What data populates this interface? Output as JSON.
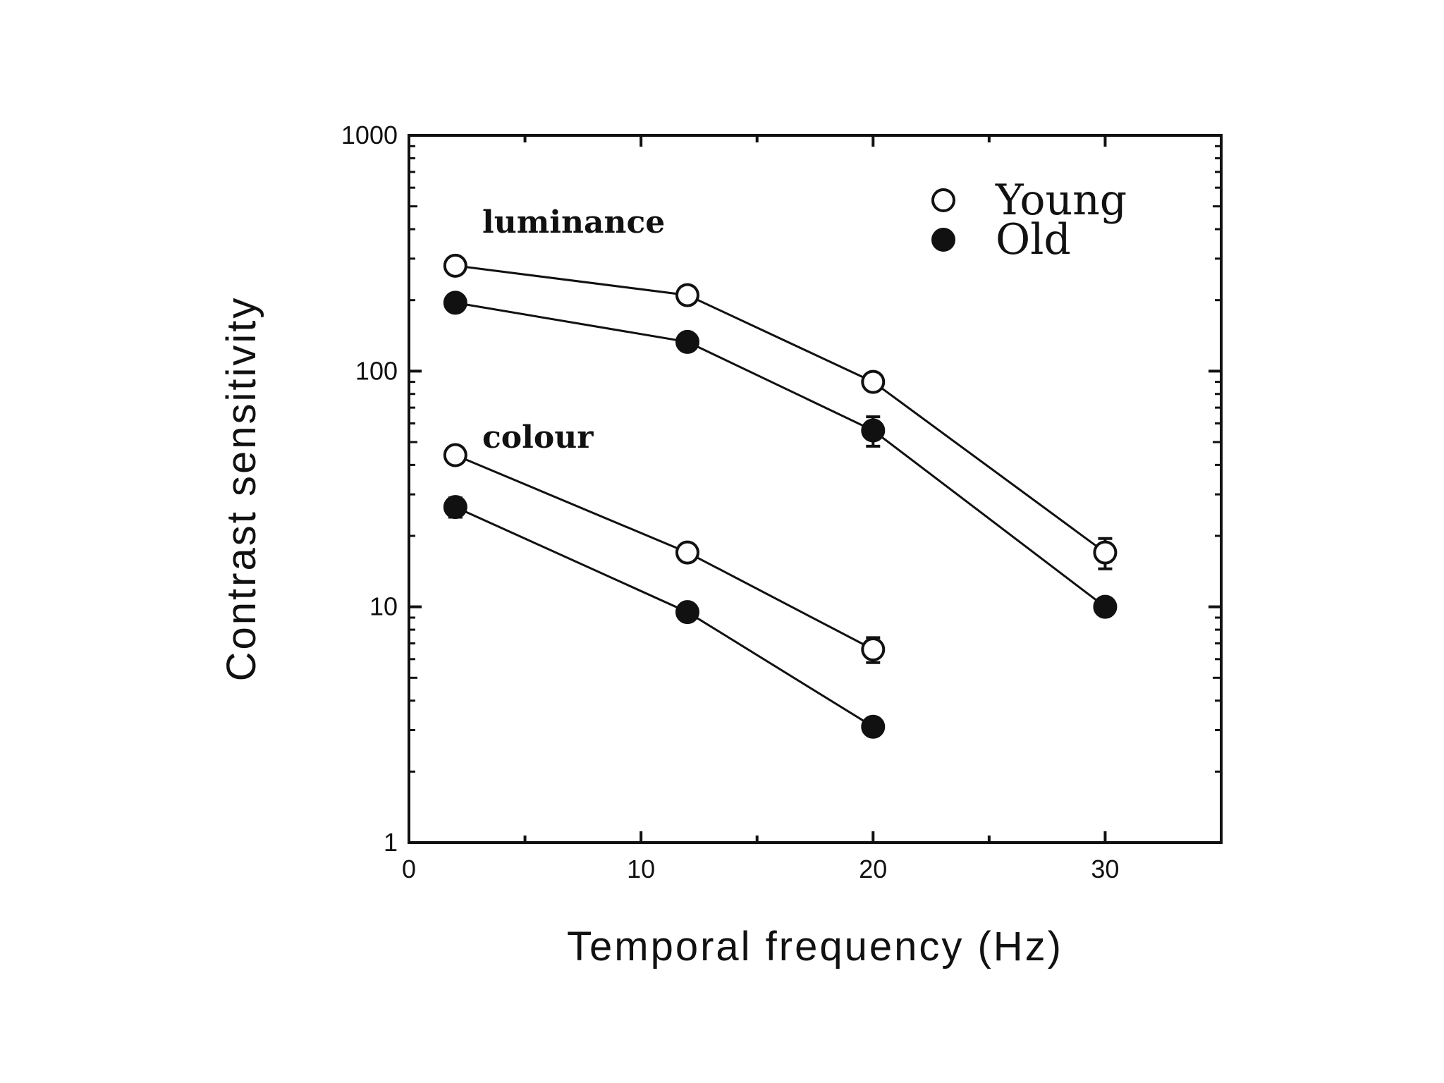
{
  "chart_data": {
    "type": "line",
    "title": "",
    "xlabel": "Temporal frequency (Hz)",
    "ylabel": "Contrast sensitivity",
    "xlim": [
      0,
      35
    ],
    "ylim": [
      1,
      1000
    ],
    "yscale": "log",
    "x_ticks": [
      0,
      10,
      20,
      30
    ],
    "x_minor_ticks": [
      5,
      15,
      25
    ],
    "y_ticks": [
      1,
      10,
      100,
      1000
    ],
    "grid": false,
    "legend": {
      "placement": "top-right",
      "entries": [
        "Young",
        "Old"
      ]
    },
    "annotations": [
      "luminance",
      "colour"
    ],
    "series": [
      {
        "name": "Young",
        "group": "luminance",
        "marker": "open-circle",
        "x": [
          2,
          12,
          20,
          30
        ],
        "y": [
          280,
          210,
          90,
          17
        ],
        "err": [
          0,
          0,
          0,
          2.5
        ]
      },
      {
        "name": "Old",
        "group": "luminance",
        "marker": "filled-circle",
        "x": [
          2,
          12,
          20,
          30
        ],
        "y": [
          195,
          133,
          56,
          10
        ],
        "err": [
          12,
          0,
          8,
          0
        ]
      },
      {
        "name": "Young",
        "group": "colour",
        "marker": "open-circle",
        "x": [
          2,
          12,
          20
        ],
        "y": [
          44,
          17,
          6.6
        ],
        "err": [
          0,
          0,
          0.8
        ]
      },
      {
        "name": "Old",
        "group": "colour",
        "marker": "filled-circle",
        "x": [
          2,
          12,
          20
        ],
        "y": [
          26.5,
          9.5,
          3.1
        ],
        "err": [
          2.5,
          0,
          0
        ]
      }
    ]
  }
}
